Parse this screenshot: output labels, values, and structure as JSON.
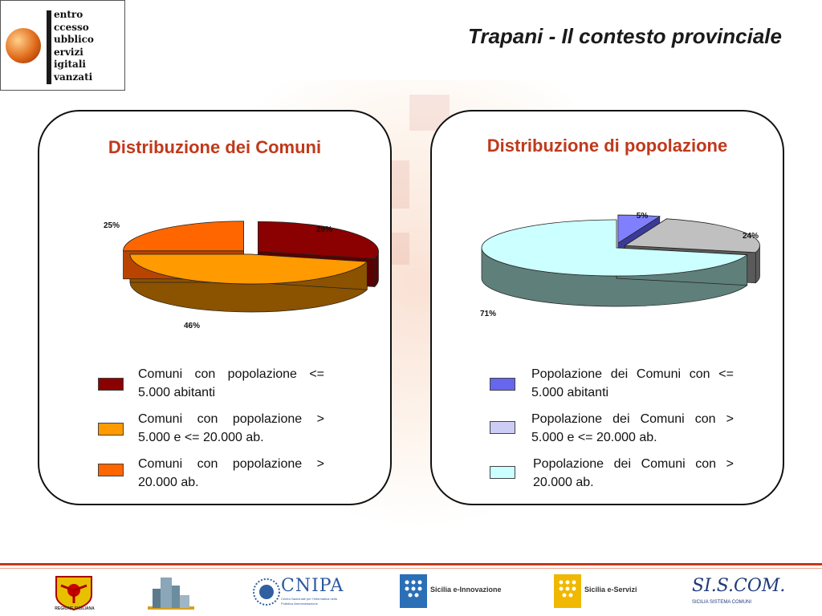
{
  "header": {
    "title": "Trapani - Il contesto provinciale",
    "logo_words": [
      "entro",
      "ccesso",
      "ubblico",
      "ervizi",
      "igitali",
      "vanzati"
    ]
  },
  "panels": [
    {
      "title": "Distribuzione dei Comuni",
      "legend": [
        {
          "text": "Comuni con popolazione <= 5.000 abitanti",
          "color": "#8b0000"
        },
        {
          "text": "Comuni con popolazione > 5.000 e <= 20.000 ab.",
          "color": "#ff9a00"
        },
        {
          "text": "Comuni con popolazione > 20.000 ab.",
          "color": "#ff6600"
        }
      ]
    },
    {
      "title": "Distribuzione di popolazione",
      "legend": [
        {
          "text": "Popolazione dei Comuni con <= 5.000 abitanti",
          "color": "#6666ee"
        },
        {
          "text": "Popolazione dei Comuni con > 5.000 e <= 20.000 ab.",
          "color": "#ccccf5"
        },
        {
          "text": "Popolazione dei Comuni con > 20.000 ab.",
          "color": "#ccffff"
        }
      ]
    }
  ],
  "chart_data": [
    {
      "type": "pie",
      "title": "Distribuzione dei Comuni",
      "categories": [
        "Comuni con popolazione <= 5.000 abitanti",
        "Comuni con popolazione > 5.000 e <= 20.000 ab.",
        "Comuni con popolazione > 20.000 ab."
      ],
      "values": [
        29,
        46,
        25
      ],
      "labels": [
        "29%",
        "46%",
        "25%"
      ],
      "colors": [
        "#8b0000",
        "#ff9a00",
        "#ff6600"
      ],
      "side_colors": [
        "#5a0000",
        "#8b5200",
        "#b84400"
      ],
      "exploded": [
        true,
        false,
        true
      ],
      "legend_position": "bottom"
    },
    {
      "type": "pie",
      "title": "Distribuzione di popolazione",
      "categories": [
        "Popolazione dei Comuni con <= 5.000 abitanti",
        "Popolazione dei Comuni con > 5.000 e <= 20.000 ab.",
        "Popolazione dei Comuni con > 20.000 ab."
      ],
      "values": [
        5,
        24,
        71
      ],
      "labels": [
        "5%",
        "24%",
        "71%"
      ],
      "colors": [
        "#8080ff",
        "#c0c0c0",
        "#ccffff"
      ],
      "side_colors": [
        "#3a3a99",
        "#5a5a5a",
        "#5f7f7a"
      ],
      "exploded": [
        true,
        true,
        false
      ],
      "legend_position": "bottom"
    }
  ],
  "footer": {
    "logos": [
      {
        "name": "REGIONE SICILIANA"
      },
      {
        "name": "CNIPA",
        "subtitle": "Centro Nazionale per l'Informatica nella Pubblica Amministrazione"
      },
      {
        "name": "Sicilia e-Innovazione"
      },
      {
        "name": "Sicilia e-Servizi"
      },
      {
        "name": "SI.S.COM.",
        "subtitle": "SICILIA SISTEMA COMUNI"
      }
    ]
  }
}
